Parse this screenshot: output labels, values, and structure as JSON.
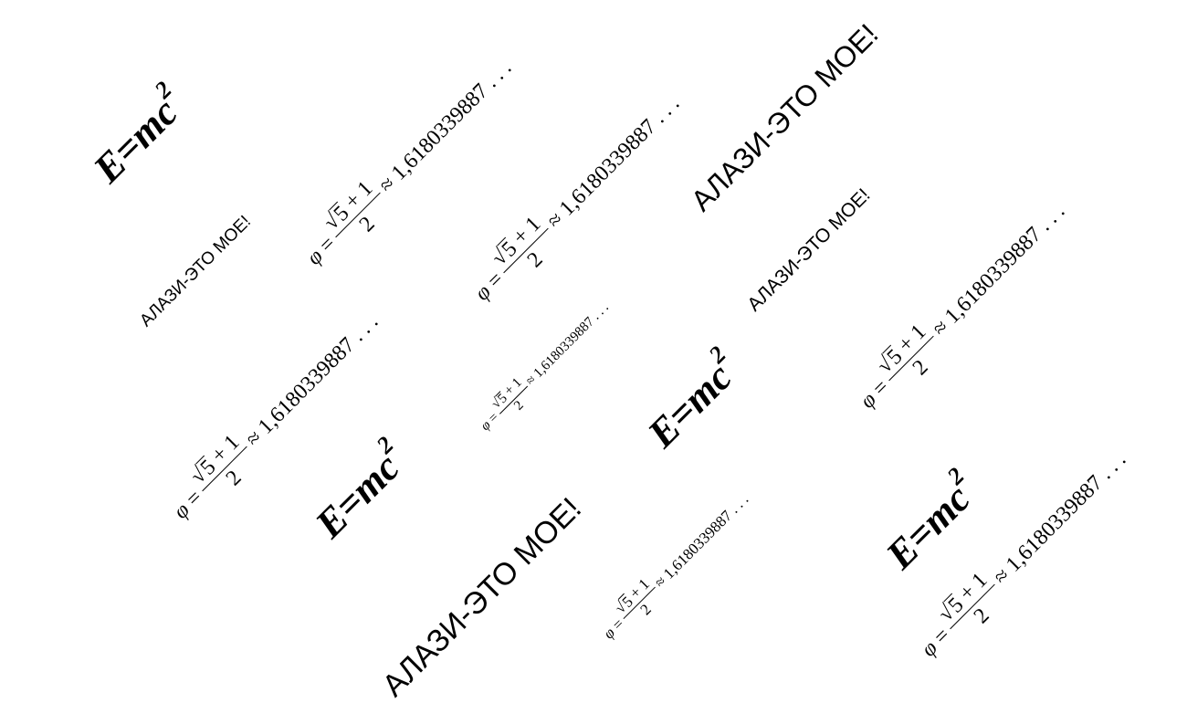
{
  "colors": {
    "text": "#000000",
    "background": "#ffffff"
  },
  "einstein": {
    "lhs": "E=mc",
    "exp": "2"
  },
  "slogan": "АЛАЗИ-ЭТО МОЕ!",
  "golden_ratio": {
    "phi": "φ",
    "eq": "=",
    "sqrt_sign": "√",
    "radicand": "5",
    "plus_one": "+ 1",
    "denominator": "2",
    "approx": "≈",
    "value": "1,6180339887 . . ."
  }
}
